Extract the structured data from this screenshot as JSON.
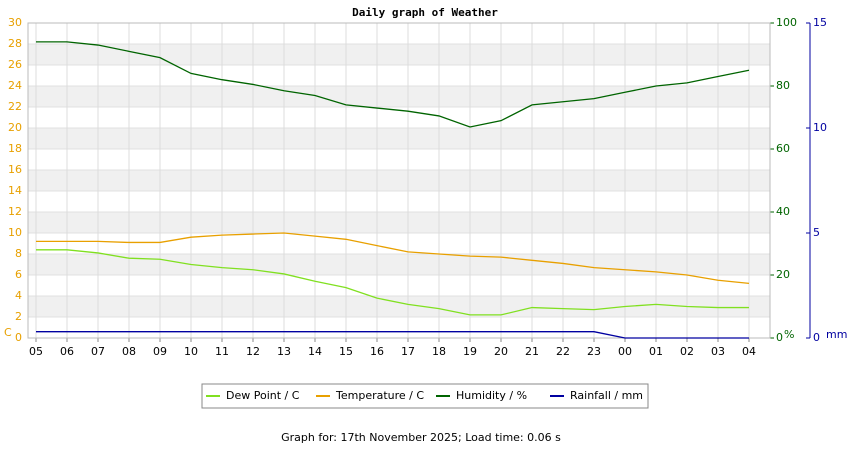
{
  "chart_data": {
    "type": "line",
    "title": "Daily graph of Weather",
    "categories": [
      "05",
      "06",
      "07",
      "08",
      "09",
      "10",
      "11",
      "12",
      "13",
      "14",
      "15",
      "16",
      "17",
      "18",
      "19",
      "20",
      "21",
      "22",
      "23",
      "00",
      "01",
      "02",
      "03",
      "04"
    ],
    "series": [
      {
        "name": "Dew Point / C",
        "color": "#80e020",
        "values": [
          8.4,
          8.4,
          8.1,
          7.6,
          7.5,
          7.0,
          6.7,
          6.5,
          6.1,
          5.4,
          4.8,
          3.8,
          3.2,
          2.8,
          2.2,
          2.2,
          2.9,
          2.8,
          2.7,
          3.0,
          3.2,
          3.0,
          2.9,
          2.9
        ]
      },
      {
        "name": "Temperature / C",
        "color": "#e8a000",
        "values": [
          9.2,
          9.2,
          9.2,
          9.1,
          9.1,
          9.6,
          9.8,
          9.9,
          10.0,
          9.7,
          9.4,
          8.8,
          8.2,
          8.0,
          7.8,
          7.7,
          7.4,
          7.1,
          6.7,
          6.5,
          6.3,
          6.0,
          5.5,
          5.2
        ]
      },
      {
        "name": "Humidity / %",
        "color": "#006400",
        "axis": "y2",
        "values": [
          94,
          94,
          93,
          91,
          89,
          84,
          82,
          80.5,
          78.5,
          77,
          74,
          73,
          72,
          70.5,
          67,
          69,
          74,
          75,
          76,
          78,
          80,
          81,
          83,
          85
        ]
      },
      {
        "name": "Rainfall / mm",
        "color": "#0000a0",
        "axis": "y3",
        "values": [
          0.3,
          0.3,
          0.3,
          0.3,
          0.3,
          0.3,
          0.3,
          0.3,
          0.3,
          0.3,
          0.3,
          0.3,
          0.3,
          0.3,
          0.3,
          0.3,
          0.3,
          0.3,
          0.3,
          0,
          0,
          0,
          0,
          0
        ]
      }
    ],
    "y_label": "C",
    "y2_label": "%",
    "y3_label": "mm",
    "ylim": [
      0,
      30
    ],
    "yticks": [
      0,
      2,
      4,
      6,
      8,
      10,
      12,
      14,
      16,
      18,
      20,
      22,
      24,
      26,
      28,
      30
    ],
    "y2lim": [
      0,
      100
    ],
    "y2ticks": [
      0,
      20,
      40,
      60,
      80,
      100
    ],
    "y3lim": [
      0,
      15
    ],
    "y3ticks": [
      0,
      5,
      10,
      15
    ],
    "grid": true,
    "footer": "Graph for: 17th November 2025; Load time: 0.06 s"
  }
}
